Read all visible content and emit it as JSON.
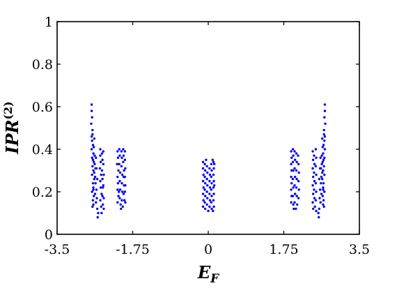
{
  "chart_data": {
    "type": "scatter",
    "title": "",
    "xlabel": {
      "main": "E",
      "sub": "F"
    },
    "ylabel": {
      "main": "IPR",
      "sup": "(2)"
    },
    "xlim": [
      -3.5,
      3.5
    ],
    "ylim": [
      0,
      1
    ],
    "xticks": [
      -3.5,
      -1.75,
      0,
      1.75,
      3.5
    ],
    "xtick_labels": [
      "-3.5",
      "-1.75",
      "0",
      "1.75",
      "3.5"
    ],
    "yticks": [
      0,
      0.2,
      0.4,
      0.6,
      0.8,
      1
    ],
    "ytick_labels": [
      "0",
      "0.2",
      "0.4",
      "0.6",
      "0.8",
      "1"
    ],
    "grid": false,
    "marker_color": "#0000ee",
    "series": [
      {
        "points": [
          [
            -2.7,
            0.61
          ],
          [
            -2.7,
            0.58
          ],
          [
            -2.69,
            0.55
          ],
          [
            -2.71,
            0.52
          ],
          [
            -2.68,
            0.49
          ],
          [
            -2.7,
            0.46
          ],
          [
            -2.69,
            0.44
          ],
          [
            -2.67,
            0.42
          ],
          [
            -2.7,
            0.4
          ],
          [
            -2.66,
            0.38
          ],
          [
            -2.69,
            0.36
          ],
          [
            -2.65,
            0.34
          ],
          [
            -2.68,
            0.32
          ],
          [
            -2.66,
            0.3
          ],
          [
            -2.69,
            0.28
          ],
          [
            -2.64,
            0.26
          ],
          [
            -2.67,
            0.24
          ],
          [
            -2.66,
            0.22
          ],
          [
            -2.69,
            0.2
          ],
          [
            -2.65,
            0.18
          ],
          [
            -2.67,
            0.16
          ],
          [
            -2.66,
            0.14
          ],
          [
            -2.68,
            0.13
          ],
          [
            -2.64,
            0.29
          ],
          [
            -2.67,
            0.35
          ],
          [
            -2.65,
            0.41
          ],
          [
            -2.68,
            0.47
          ],
          [
            -2.66,
            0.21
          ],
          [
            -2.63,
            0.33
          ],
          [
            -2.64,
            0.45
          ],
          [
            -2.63,
            0.37
          ],
          [
            -2.62,
            0.27
          ],
          [
            -2.61,
            0.31
          ],
          [
            -2.62,
            0.19
          ],
          [
            -2.61,
            0.24
          ],
          [
            -2.6,
            0.15
          ],
          [
            -2.59,
            0.21
          ],
          [
            -2.58,
            0.17
          ],
          [
            -2.57,
            0.12
          ],
          [
            -2.56,
            0.08
          ],
          [
            -2.57,
            0.26
          ],
          [
            -2.59,
            0.31
          ],
          [
            -2.6,
            0.36
          ],
          [
            -2.55,
            0.1
          ],
          [
            -2.5,
            0.4
          ],
          [
            -2.5,
            0.37
          ],
          [
            -2.49,
            0.34
          ],
          [
            -2.51,
            0.31
          ],
          [
            -2.48,
            0.28
          ],
          [
            -2.5,
            0.25
          ],
          [
            -2.49,
            0.22
          ],
          [
            -2.47,
            0.19
          ],
          [
            -2.5,
            0.16
          ],
          [
            -2.48,
            0.13
          ],
          [
            -2.47,
            0.1
          ],
          [
            -2.46,
            0.38
          ],
          [
            -2.45,
            0.35
          ],
          [
            -2.46,
            0.3
          ],
          [
            -2.45,
            0.26
          ],
          [
            -2.44,
            0.22
          ],
          [
            -2.45,
            0.18
          ],
          [
            -2.44,
            0.14
          ],
          [
            -2.43,
            0.39
          ],
          [
            -2.43,
            0.33
          ],
          [
            -2.42,
            0.28
          ],
          [
            -2.43,
            0.23
          ],
          [
            -2.42,
            0.17
          ],
          [
            -2.42,
            0.12
          ],
          [
            -2.1,
            0.39
          ],
          [
            -2.09,
            0.36
          ],
          [
            -2.11,
            0.33
          ],
          [
            -2.08,
            0.3
          ],
          [
            -2.1,
            0.27
          ],
          [
            -2.09,
            0.24
          ],
          [
            -2.1,
            0.21
          ],
          [
            -2.08,
            0.18
          ],
          [
            -2.1,
            0.15
          ],
          [
            -2.06,
            0.4
          ],
          [
            -2.05,
            0.37
          ],
          [
            -2.06,
            0.33
          ],
          [
            -2.04,
            0.29
          ],
          [
            -2.05,
            0.25
          ],
          [
            -2.04,
            0.21
          ],
          [
            -2.05,
            0.17
          ],
          [
            -2.03,
            0.14
          ],
          [
            -2.01,
            0.39
          ],
          [
            -2.0,
            0.36
          ],
          [
            -2.01,
            0.32
          ],
          [
            -1.99,
            0.28
          ],
          [
            -2.0,
            0.24
          ],
          [
            -1.99,
            0.2
          ],
          [
            -2.0,
            0.16
          ],
          [
            -1.97,
            0.4
          ],
          [
            -1.96,
            0.37
          ],
          [
            -1.97,
            0.34
          ],
          [
            -1.95,
            0.3
          ],
          [
            -1.96,
            0.27
          ],
          [
            -1.95,
            0.23
          ],
          [
            -1.96,
            0.19
          ],
          [
            -1.94,
            0.16
          ],
          [
            -1.93,
            0.39
          ],
          [
            -1.93,
            0.35
          ],
          [
            -1.92,
            0.31
          ],
          [
            -1.93,
            0.27
          ],
          [
            -1.92,
            0.23
          ],
          [
            -1.93,
            0.2
          ],
          [
            -1.92,
            0.15
          ],
          [
            -1.98,
            0.13
          ],
          [
            -2.02,
            0.12
          ],
          [
            -2.07,
            0.2
          ],
          [
            -0.12,
            0.34
          ],
          [
            -0.12,
            0.31
          ],
          [
            -0.11,
            0.28
          ],
          [
            -0.12,
            0.25
          ],
          [
            -0.11,
            0.22
          ],
          [
            -0.12,
            0.19
          ],
          [
            -0.11,
            0.16
          ],
          [
            -0.12,
            0.13
          ],
          [
            -0.08,
            0.33
          ],
          [
            -0.07,
            0.3
          ],
          [
            -0.08,
            0.27
          ],
          [
            -0.07,
            0.24
          ],
          [
            -0.08,
            0.21
          ],
          [
            -0.07,
            0.18
          ],
          [
            -0.08,
            0.15
          ],
          [
            -0.07,
            0.12
          ],
          [
            -0.03,
            0.32
          ],
          [
            -0.02,
            0.29
          ],
          [
            -0.03,
            0.26
          ],
          [
            -0.02,
            0.23
          ],
          [
            -0.03,
            0.2
          ],
          [
            -0.02,
            0.17
          ],
          [
            -0.03,
            0.14
          ],
          [
            0.0,
            0.11
          ],
          [
            0.03,
            0.31
          ],
          [
            0.04,
            0.28
          ],
          [
            0.03,
            0.25
          ],
          [
            0.04,
            0.22
          ],
          [
            0.03,
            0.19
          ],
          [
            0.04,
            0.16
          ],
          [
            0.03,
            0.13
          ],
          [
            0.07,
            0.33
          ],
          [
            0.08,
            0.3
          ],
          [
            0.07,
            0.27
          ],
          [
            0.08,
            0.24
          ],
          [
            0.07,
            0.21
          ],
          [
            0.08,
            0.18
          ],
          [
            0.07,
            0.15
          ],
          [
            0.08,
            0.12
          ],
          [
            0.12,
            0.34
          ],
          [
            0.13,
            0.31
          ],
          [
            0.12,
            0.28
          ],
          [
            0.13,
            0.25
          ],
          [
            0.12,
            0.22
          ],
          [
            0.13,
            0.19
          ],
          [
            0.12,
            0.16
          ],
          [
            0.13,
            0.13
          ],
          [
            0.11,
            0.11
          ],
          [
            0.14,
            0.33
          ],
          [
            0.14,
            0.23
          ],
          [
            -0.05,
            0.35
          ],
          [
            0.1,
            0.35
          ],
          [
            1.92,
            0.39
          ],
          [
            1.93,
            0.36
          ],
          [
            1.92,
            0.33
          ],
          [
            1.93,
            0.3
          ],
          [
            1.92,
            0.27
          ],
          [
            1.93,
            0.24
          ],
          [
            1.92,
            0.21
          ],
          [
            1.93,
            0.18
          ],
          [
            1.92,
            0.15
          ],
          [
            1.96,
            0.4
          ],
          [
            1.97,
            0.37
          ],
          [
            1.96,
            0.34
          ],
          [
            1.97,
            0.3
          ],
          [
            1.96,
            0.26
          ],
          [
            1.97,
            0.22
          ],
          [
            1.96,
            0.18
          ],
          [
            1.97,
            0.14
          ],
          [
            2.0,
            0.39
          ],
          [
            2.01,
            0.35
          ],
          [
            2.0,
            0.31
          ],
          [
            2.01,
            0.27
          ],
          [
            2.0,
            0.23
          ],
          [
            2.01,
            0.19
          ],
          [
            2.0,
            0.15
          ],
          [
            2.04,
            0.38
          ],
          [
            2.05,
            0.34
          ],
          [
            2.04,
            0.3
          ],
          [
            2.05,
            0.26
          ],
          [
            2.04,
            0.22
          ],
          [
            2.05,
            0.18
          ],
          [
            2.06,
            0.14
          ],
          [
            2.08,
            0.37
          ],
          [
            2.09,
            0.33
          ],
          [
            2.1,
            0.29
          ],
          [
            2.09,
            0.25
          ],
          [
            2.1,
            0.21
          ],
          [
            2.09,
            0.17
          ],
          [
            2.03,
            0.12
          ],
          [
            1.98,
            0.12
          ],
          [
            2.42,
            0.39
          ],
          [
            2.43,
            0.35
          ],
          [
            2.42,
            0.31
          ],
          [
            2.43,
            0.27
          ],
          [
            2.42,
            0.23
          ],
          [
            2.43,
            0.19
          ],
          [
            2.42,
            0.15
          ],
          [
            2.43,
            0.12
          ],
          [
            2.45,
            0.37
          ],
          [
            2.46,
            0.33
          ],
          [
            2.45,
            0.29
          ],
          [
            2.46,
            0.25
          ],
          [
            2.45,
            0.21
          ],
          [
            2.46,
            0.17
          ],
          [
            2.47,
            0.13
          ],
          [
            2.49,
            0.4
          ],
          [
            2.5,
            0.36
          ],
          [
            2.49,
            0.32
          ],
          [
            2.5,
            0.28
          ],
          [
            2.49,
            0.24
          ],
          [
            2.5,
            0.2
          ],
          [
            2.49,
            0.16
          ],
          [
            2.5,
            0.11
          ],
          [
            2.56,
            0.08
          ],
          [
            2.57,
            0.12
          ],
          [
            2.58,
            0.17
          ],
          [
            2.59,
            0.21
          ],
          [
            2.6,
            0.15
          ],
          [
            2.61,
            0.24
          ],
          [
            2.62,
            0.19
          ],
          [
            2.61,
            0.31
          ],
          [
            2.62,
            0.27
          ],
          [
            2.63,
            0.37
          ],
          [
            2.64,
            0.45
          ],
          [
            2.63,
            0.33
          ],
          [
            2.66,
            0.21
          ],
          [
            2.68,
            0.47
          ],
          [
            2.65,
            0.41
          ],
          [
            2.67,
            0.35
          ],
          [
            2.64,
            0.29
          ],
          [
            2.68,
            0.13
          ],
          [
            2.66,
            0.14
          ],
          [
            2.67,
            0.16
          ],
          [
            2.65,
            0.18
          ],
          [
            2.69,
            0.2
          ],
          [
            2.66,
            0.22
          ],
          [
            2.67,
            0.24
          ],
          [
            2.64,
            0.26
          ],
          [
            2.69,
            0.28
          ],
          [
            2.66,
            0.3
          ],
          [
            2.68,
            0.32
          ],
          [
            2.65,
            0.34
          ],
          [
            2.69,
            0.36
          ],
          [
            2.66,
            0.38
          ],
          [
            2.7,
            0.4
          ],
          [
            2.67,
            0.42
          ],
          [
            2.69,
            0.44
          ],
          [
            2.7,
            0.46
          ],
          [
            2.68,
            0.49
          ],
          [
            2.71,
            0.52
          ],
          [
            2.69,
            0.55
          ],
          [
            2.7,
            0.58
          ],
          [
            2.7,
            0.61
          ],
          [
            2.6,
            0.36
          ],
          [
            2.59,
            0.31
          ],
          [
            2.57,
            0.26
          ],
          [
            2.55,
            0.1
          ]
        ]
      }
    ]
  }
}
